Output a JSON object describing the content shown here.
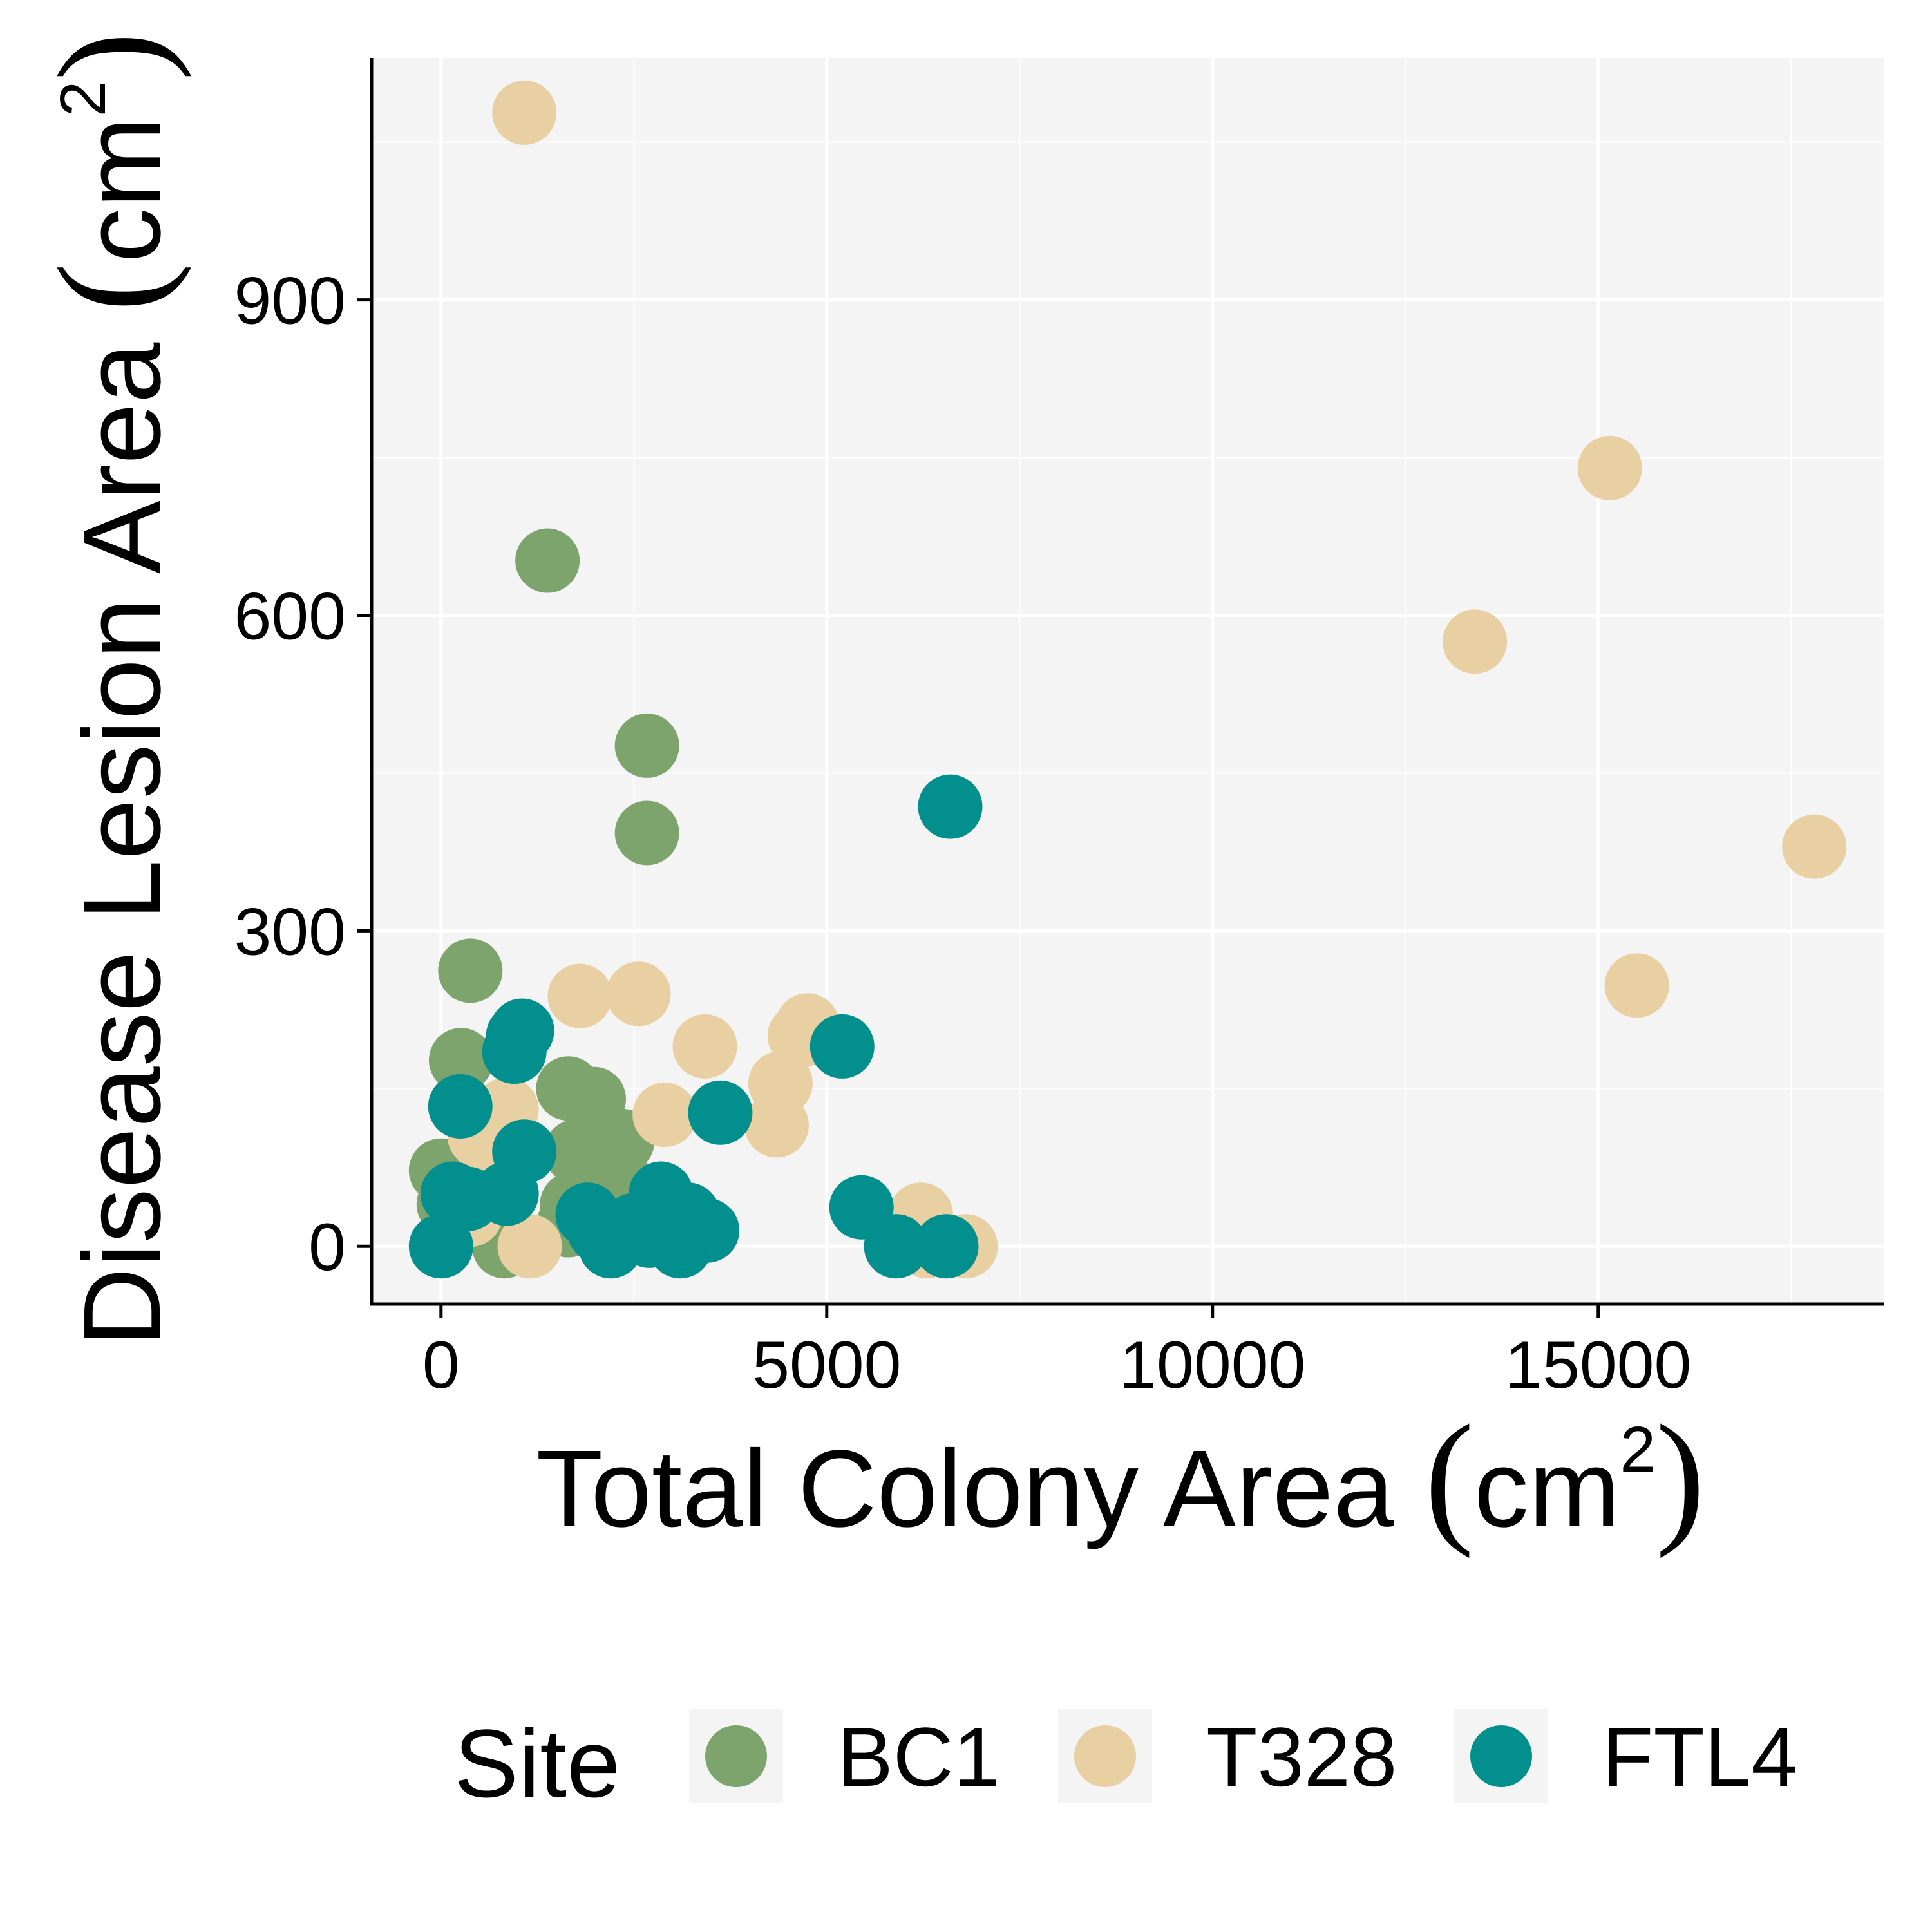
{
  "chart_data": {
    "type": "scatter",
    "xlabel": {
      "main": "Total Colony Area ",
      "open": "(",
      "unit": "cm",
      "sup": "2",
      "close": ")"
    },
    "ylabel": {
      "main": "Disease Lesion Area ",
      "open": "(",
      "unit": "cm",
      "sup": "2",
      "close": ")"
    },
    "xlim": [
      -900,
      18700
    ],
    "ylim": [
      -55,
      1130
    ],
    "x_ticks": [
      0,
      5000,
      10000,
      15000
    ],
    "x_tick_labels": [
      "0",
      "5000",
      "10000",
      "15000"
    ],
    "y_ticks": [
      0,
      300,
      600,
      900
    ],
    "y_tick_labels": [
      "0",
      "300",
      "600",
      "900"
    ],
    "x_minor": [
      2500,
      7500,
      12500,
      17500
    ],
    "y_minor": [
      150,
      450,
      750,
      1050
    ],
    "grid": true,
    "legend": {
      "title": "Site",
      "position": "bottom"
    },
    "series": [
      {
        "name": "BC1",
        "color": "#7ea46d",
        "points": [
          [
            1380,
            652
          ],
          [
            2670,
            476
          ],
          [
            2670,
            393
          ],
          [
            380,
            262
          ],
          [
            260,
            177
          ],
          [
            1650,
            150
          ],
          [
            1980,
            140
          ],
          [
            1750,
            90
          ],
          [
            2150,
            100
          ],
          [
            2350,
            100
          ],
          [
            2250,
            80
          ],
          [
            1950,
            75
          ],
          [
            0,
            72
          ],
          [
            1700,
            40
          ],
          [
            1650,
            20
          ],
          [
            820,
            0
          ],
          [
            100,
            40
          ],
          [
            200,
            55
          ],
          [
            2050,
            60
          ]
        ]
      },
      {
        "name": "T328",
        "color": "#e9d0a2",
        "points": [
          [
            1080,
            1078
          ],
          [
            15150,
            740
          ],
          [
            13400,
            575
          ],
          [
            17800,
            380
          ],
          [
            15500,
            248
          ],
          [
            1800,
            238
          ],
          [
            2560,
            240
          ],
          [
            3420,
            190
          ],
          [
            4750,
            210
          ],
          [
            4650,
            200
          ],
          [
            4400,
            155
          ],
          [
            4350,
            115
          ],
          [
            2900,
            125
          ],
          [
            850,
            130
          ],
          [
            500,
            105
          ],
          [
            600,
            95
          ],
          [
            380,
            30
          ],
          [
            1150,
            0
          ],
          [
            6220,
            30
          ],
          [
            6300,
            0
          ],
          [
            6800,
            0
          ]
        ]
      },
      {
        "name": "FTL4",
        "color": "#028f8e",
        "points": [
          [
            6600,
            418
          ],
          [
            5200,
            190
          ],
          [
            1050,
            205
          ],
          [
            1000,
            200
          ],
          [
            950,
            185
          ],
          [
            250,
            133
          ],
          [
            3620,
            127
          ],
          [
            1080,
            90
          ],
          [
            2850,
            50
          ],
          [
            2950,
            25
          ],
          [
            3200,
            30
          ],
          [
            3450,
            15
          ],
          [
            2500,
            20
          ],
          [
            2700,
            10
          ],
          [
            3100,
            0
          ],
          [
            2200,
            0
          ],
          [
            2050,
            15
          ],
          [
            1900,
            30
          ],
          [
            5450,
            37
          ],
          [
            5900,
            0
          ],
          [
            6550,
            0
          ],
          [
            0,
            0
          ],
          [
            350,
            45
          ],
          [
            850,
            50
          ],
          [
            150,
            50
          ]
        ]
      }
    ]
  }
}
